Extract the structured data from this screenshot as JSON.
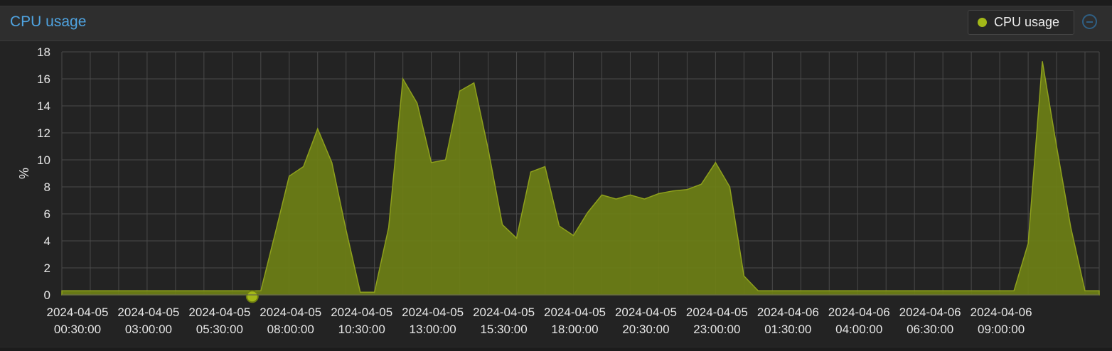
{
  "panel": {
    "title": "CPU usage",
    "legend": {
      "label": "CPU usage",
      "color": "#a3b818"
    },
    "collapse_icon": "minus-circle-icon"
  },
  "colors": {
    "area_fill": "#6b7d16",
    "area_stroke": "#8ea01c",
    "grid": "#4a4a4a",
    "background": "#232323"
  },
  "chart_data": {
    "type": "area",
    "title": "CPU usage",
    "ylabel": "%",
    "xlabel": "",
    "ylim": [
      0,
      18
    ],
    "yticks": [
      0,
      2,
      4,
      6,
      8,
      10,
      12,
      14,
      16,
      18
    ],
    "x_start": "2024-04-05 00:00:00",
    "x_step_minutes": 30,
    "x_tick_labels": [
      [
        "2024-04-05",
        "00:30:00"
      ],
      [
        "2024-04-05",
        "03:00:00"
      ],
      [
        "2024-04-05",
        "05:30:00"
      ],
      [
        "2024-04-05",
        "08:00:00"
      ],
      [
        "2024-04-05",
        "10:30:00"
      ],
      [
        "2024-04-05",
        "13:00:00"
      ],
      [
        "2024-04-05",
        "15:30:00"
      ],
      [
        "2024-04-05",
        "18:00:00"
      ],
      [
        "2024-04-05",
        "20:30:00"
      ],
      [
        "2024-04-05",
        "23:00:00"
      ],
      [
        "2024-04-06",
        "01:30:00"
      ],
      [
        "2024-04-06",
        "04:00:00"
      ],
      [
        "2024-04-06",
        "06:30:00"
      ],
      [
        "2024-04-06",
        "09:00:00"
      ]
    ],
    "grid": true,
    "legend_position": "top-right",
    "series": [
      {
        "name": "CPU usage",
        "values": [
          0.3,
          0.3,
          0.3,
          0.3,
          0.3,
          0.3,
          0.3,
          0.3,
          0.3,
          0.3,
          0.3,
          0.3,
          0.3,
          0.3,
          0.3,
          4.5,
          8.8,
          9.5,
          12.3,
          9.8,
          4.8,
          0.2,
          0.2,
          5.0,
          16.0,
          14.2,
          9.8,
          10.0,
          15.1,
          15.7,
          10.8,
          5.2,
          4.2,
          9.1,
          9.5,
          5.1,
          4.4,
          6.1,
          7.4,
          7.1,
          7.4,
          7.1,
          7.5,
          7.7,
          7.8,
          8.2,
          9.8,
          8.0,
          1.4,
          0.3,
          0.3,
          0.3,
          0.3,
          0.3,
          0.3,
          0.3,
          0.3,
          0.3,
          0.3,
          0.3,
          0.3,
          0.3,
          0.3,
          0.3,
          0.3,
          0.3,
          0.3,
          0.3,
          3.8,
          17.3,
          11.0,
          5.0,
          0.3,
          0.3
        ],
        "highlight_index": 13
      }
    ]
  }
}
